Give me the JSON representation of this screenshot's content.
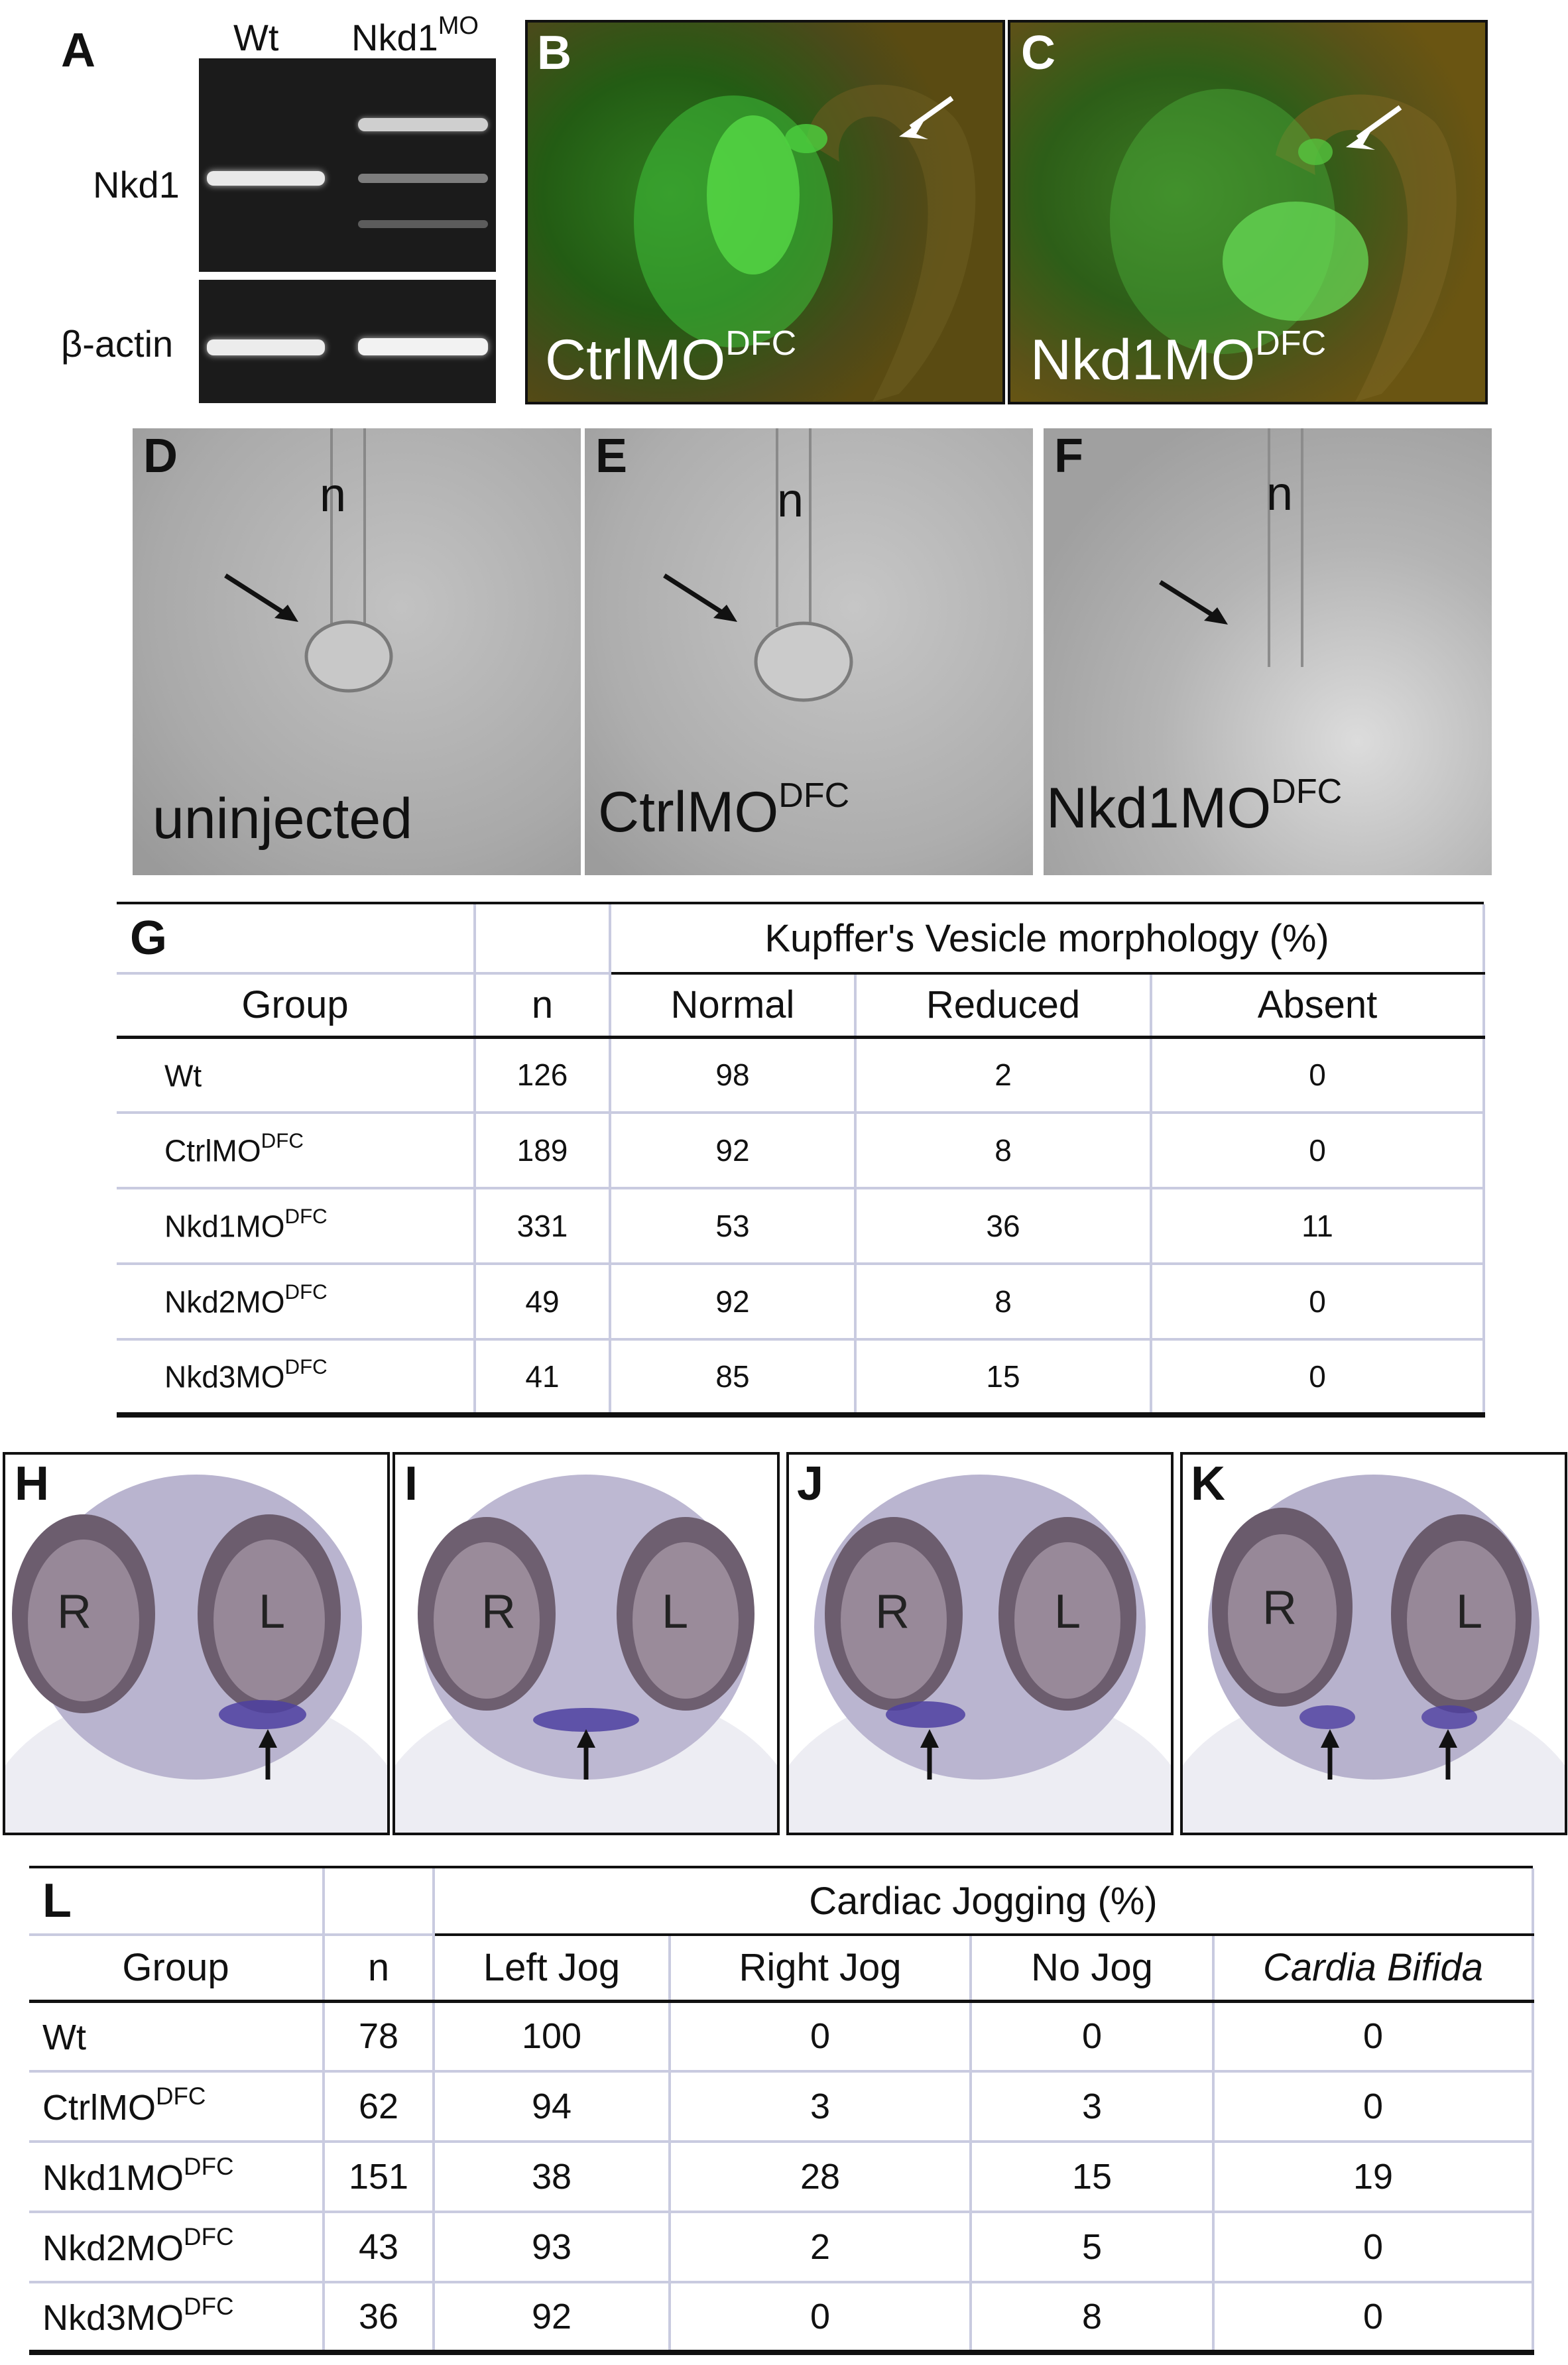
{
  "panel_labels": {
    "a": "A",
    "b": "B",
    "c": "C",
    "d": "D",
    "e": "E",
    "f": "F",
    "g": "G",
    "h": "H",
    "i": "I",
    "j": "J",
    "k": "K",
    "l": "L"
  },
  "panel_a": {
    "col_wt": "Wt",
    "col_mo_base": "Nkd1",
    "col_mo_sup": "MO",
    "row_nkd1": "Nkd1",
    "row_actin": "β-actin"
  },
  "panel_b": {
    "base": "CtrlMO",
    "sup": "DFC"
  },
  "panel_c": {
    "base": "Nkd1MO",
    "sup": "DFC"
  },
  "panel_d": {
    "caption": "uninjected",
    "n": "n"
  },
  "panel_e": {
    "base": "CtrlMO",
    "sup": "DFC",
    "n": "n"
  },
  "panel_f": {
    "base": "Nkd1MO",
    "sup": "DFC",
    "n": "n"
  },
  "table_g": {
    "title": "Kupffer's Vesicle morphology (%)",
    "headers": [
      "Group",
      "n",
      "Normal",
      "Reduced",
      "Absent"
    ],
    "rows": [
      {
        "group": "Wt",
        "sup": "",
        "n": "126",
        "c1": "98",
        "c2": "2",
        "c3": "0"
      },
      {
        "group": "CtrlMO",
        "sup": "DFC",
        "n": "189",
        "c1": "92",
        "c2": "8",
        "c3": "0"
      },
      {
        "group": "Nkd1MO",
        "sup": "DFC",
        "n": "331",
        "c1": "53",
        "c2": "36",
        "c3": "11"
      },
      {
        "group": "Nkd2MO",
        "sup": "DFC",
        "n": "49",
        "c1": "92",
        "c2": "8",
        "c3": "0"
      },
      {
        "group": "Nkd3MO",
        "sup": "DFC",
        "n": "41",
        "c1": "85",
        "c2": "15",
        "c3": "0"
      }
    ]
  },
  "heart_letters": {
    "r": "R",
    "l": "L"
  },
  "table_l": {
    "title": "Cardiac Jogging (%)",
    "headers": [
      "Group",
      "n",
      "Left Jog",
      "Right Jog",
      "No Jog",
      "Cardia Bifida"
    ],
    "rows": [
      {
        "group": "Wt",
        "sup": "",
        "n": "78",
        "c1": "100",
        "c2": "0",
        "c3": "0",
        "c4": "0"
      },
      {
        "group": "CtrlMO",
        "sup": "DFC",
        "n": "62",
        "c1": "94",
        "c2": "3",
        "c3": "3",
        "c4": "0"
      },
      {
        "group": "Nkd1MO",
        "sup": "DFC",
        "n": "151",
        "c1": "38",
        "c2": "28",
        "c3": "15",
        "c4": "19"
      },
      {
        "group": "Nkd2MO",
        "sup": "DFC",
        "n": "43",
        "c1": "93",
        "c2": "2",
        "c3": "5",
        "c4": "0"
      },
      {
        "group": "Nkd3MO",
        "sup": "DFC",
        "n": "36",
        "c1": "92",
        "c2": "0",
        "c3": "8",
        "c4": "0"
      }
    ]
  }
}
